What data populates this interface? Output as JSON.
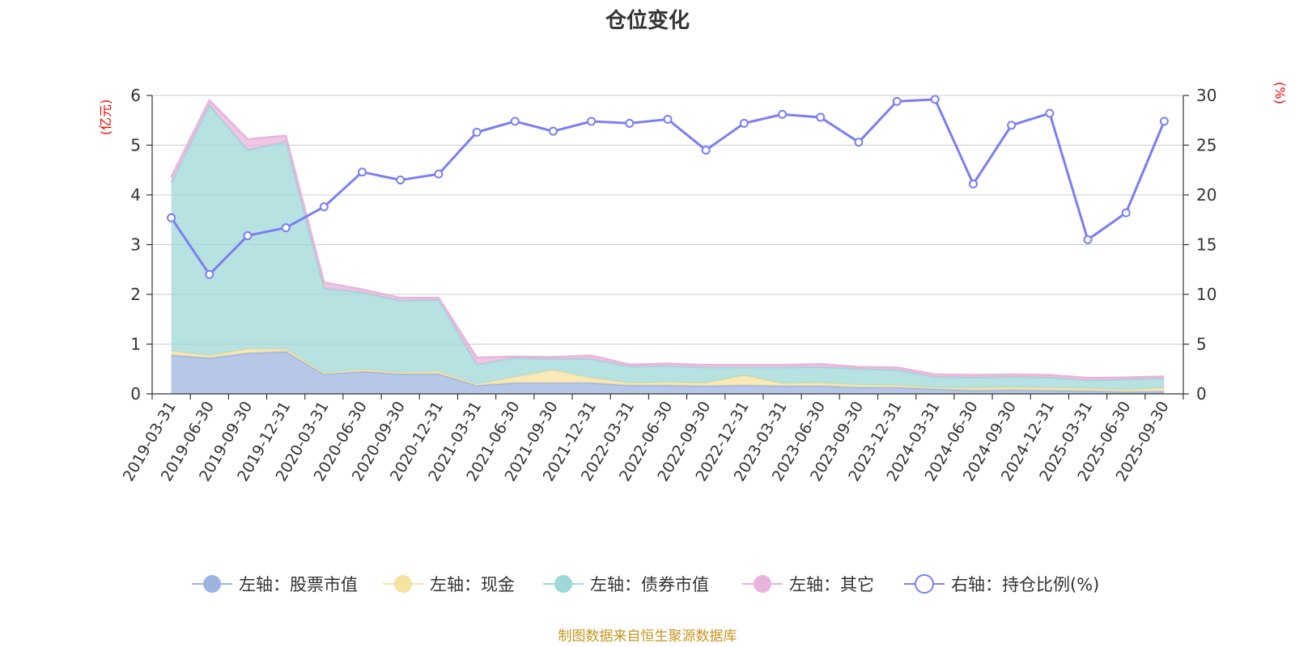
{
  "chart_data": {
    "type": "area",
    "title": "仓位变化",
    "y_left_unit": "(亿元)",
    "y_right_unit": "(%)",
    "y_left_range": [
      0,
      6
    ],
    "y_right_range": [
      0,
      30
    ],
    "y_left_ticks": [
      "0",
      "1",
      "2",
      "3",
      "4",
      "5",
      "6"
    ],
    "y_right_ticks": [
      "0",
      "5",
      "10",
      "15",
      "20",
      "25",
      "30"
    ],
    "grid": true,
    "legend_position": "bottom",
    "x": [
      "2019-03-31",
      "2019-06-30",
      "2019-09-30",
      "2019-12-31",
      "2020-03-31",
      "2020-06-30",
      "2020-09-30",
      "2020-12-31",
      "2021-03-31",
      "2021-06-30",
      "2021-09-30",
      "2021-12-31",
      "2022-03-31",
      "2022-06-30",
      "2022-09-30",
      "2022-12-31",
      "2023-03-31",
      "2023-06-30",
      "2023-09-30",
      "2023-12-31",
      "2024-03-31",
      "2024-06-30",
      "2024-09-30",
      "2024-12-31",
      "2025-03-31",
      "2025-06-30",
      "2025-09-30"
    ],
    "series": [
      {
        "name": "左轴：股票市值",
        "axis": "left",
        "color": "#9db4e0",
        "values": [
          0.78,
          0.72,
          0.82,
          0.85,
          0.4,
          0.45,
          0.4,
          0.4,
          0.17,
          0.22,
          0.22,
          0.22,
          0.17,
          0.17,
          0.16,
          0.17,
          0.16,
          0.16,
          0.13,
          0.13,
          0.1,
          0.07,
          0.08,
          0.07,
          0.06,
          0.04,
          0.05
        ]
      },
      {
        "name": "左轴：现金",
        "axis": "left",
        "color": "#f7e2a2",
        "values": [
          0.08,
          0.05,
          0.08,
          0.05,
          0.02,
          0.04,
          0.03,
          0.05,
          0.02,
          0.12,
          0.26,
          0.1,
          0.05,
          0.06,
          0.06,
          0.2,
          0.05,
          0.06,
          0.05,
          0.04,
          0.02,
          0.05,
          0.05,
          0.05,
          0.05,
          0.04,
          0.07
        ]
      },
      {
        "name": "左轴：债券市值",
        "axis": "left",
        "color": "#9fd8d8",
        "values": [
          3.38,
          5.03,
          4.0,
          4.17,
          1.7,
          1.55,
          1.44,
          1.44,
          0.4,
          0.38,
          0.22,
          0.38,
          0.33,
          0.33,
          0.31,
          0.16,
          0.32,
          0.32,
          0.32,
          0.31,
          0.22,
          0.21,
          0.21,
          0.21,
          0.16,
          0.21,
          0.19
        ]
      },
      {
        "name": "左轴：其它",
        "axis": "left",
        "color": "#e8b4dc",
        "values": [
          0.12,
          0.1,
          0.22,
          0.12,
          0.12,
          0.06,
          0.06,
          0.04,
          0.14,
          0.03,
          0.04,
          0.07,
          0.04,
          0.05,
          0.05,
          0.05,
          0.05,
          0.06,
          0.04,
          0.05,
          0.05,
          0.05,
          0.05,
          0.05,
          0.05,
          0.04,
          0.04
        ]
      },
      {
        "name": "右轴：持仓比例(%)",
        "axis": "right",
        "color": "#7b7ff0",
        "values": [
          17.7,
          12.0,
          15.9,
          16.7,
          18.8,
          22.3,
          21.5,
          22.1,
          26.3,
          27.4,
          26.4,
          27.4,
          27.2,
          27.6,
          24.5,
          27.2,
          28.1,
          27.8,
          25.3,
          29.4,
          29.6,
          21.1,
          27.0,
          28.2,
          15.5,
          18.2,
          27.4
        ]
      }
    ]
  },
  "footer": {
    "source": "制图数据来自恒生聚源数据库"
  }
}
